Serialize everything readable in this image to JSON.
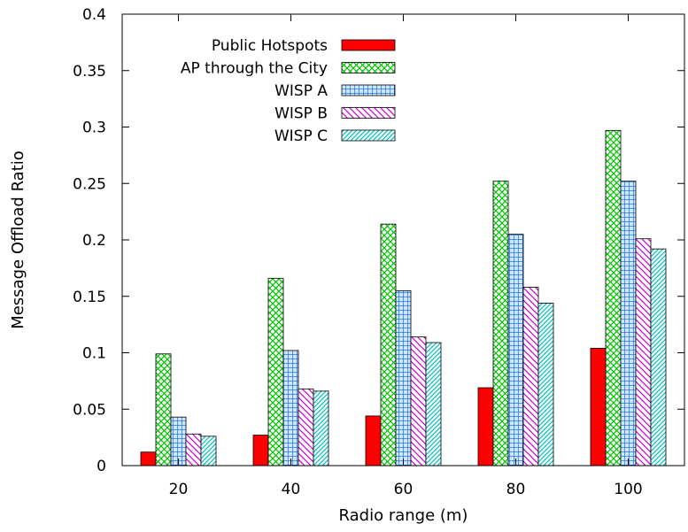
{
  "chart_data": {
    "type": "bar",
    "title": "",
    "xlabel": "Radio range (m)",
    "ylabel": "Message Offload Ratio",
    "ylim": [
      0,
      0.4
    ],
    "y_ticks": [
      "0",
      "0.05",
      "0.1",
      "0.15",
      "0.2",
      "0.25",
      "0.3",
      "0.35",
      "0.4"
    ],
    "categories": [
      "20",
      "40",
      "60",
      "80",
      "100"
    ],
    "legend_position": "top-left",
    "grid": false,
    "series": [
      {
        "name": "Public Hotspots",
        "color": "#ff0000",
        "pattern": "solid",
        "values": [
          0.012,
          0.027,
          0.044,
          0.069,
          0.104
        ]
      },
      {
        "name": "AP through the City",
        "color": "#00c000",
        "pattern": "crosshatch",
        "values": [
          0.099,
          0.166,
          0.214,
          0.252,
          0.297
        ]
      },
      {
        "name": "WISP A",
        "color": "#0080ff",
        "pattern": "grid",
        "values": [
          0.043,
          0.102,
          0.155,
          0.205,
          0.252
        ]
      },
      {
        "name": "WISP B",
        "color": "#cc00cc",
        "pattern": "back-diagonal",
        "values": [
          0.028,
          0.068,
          0.114,
          0.158,
          0.201
        ]
      },
      {
        "name": "WISP C",
        "color": "#00c0c0",
        "pattern": "diagonal",
        "values": [
          0.026,
          0.066,
          0.109,
          0.144,
          0.192
        ]
      }
    ]
  }
}
